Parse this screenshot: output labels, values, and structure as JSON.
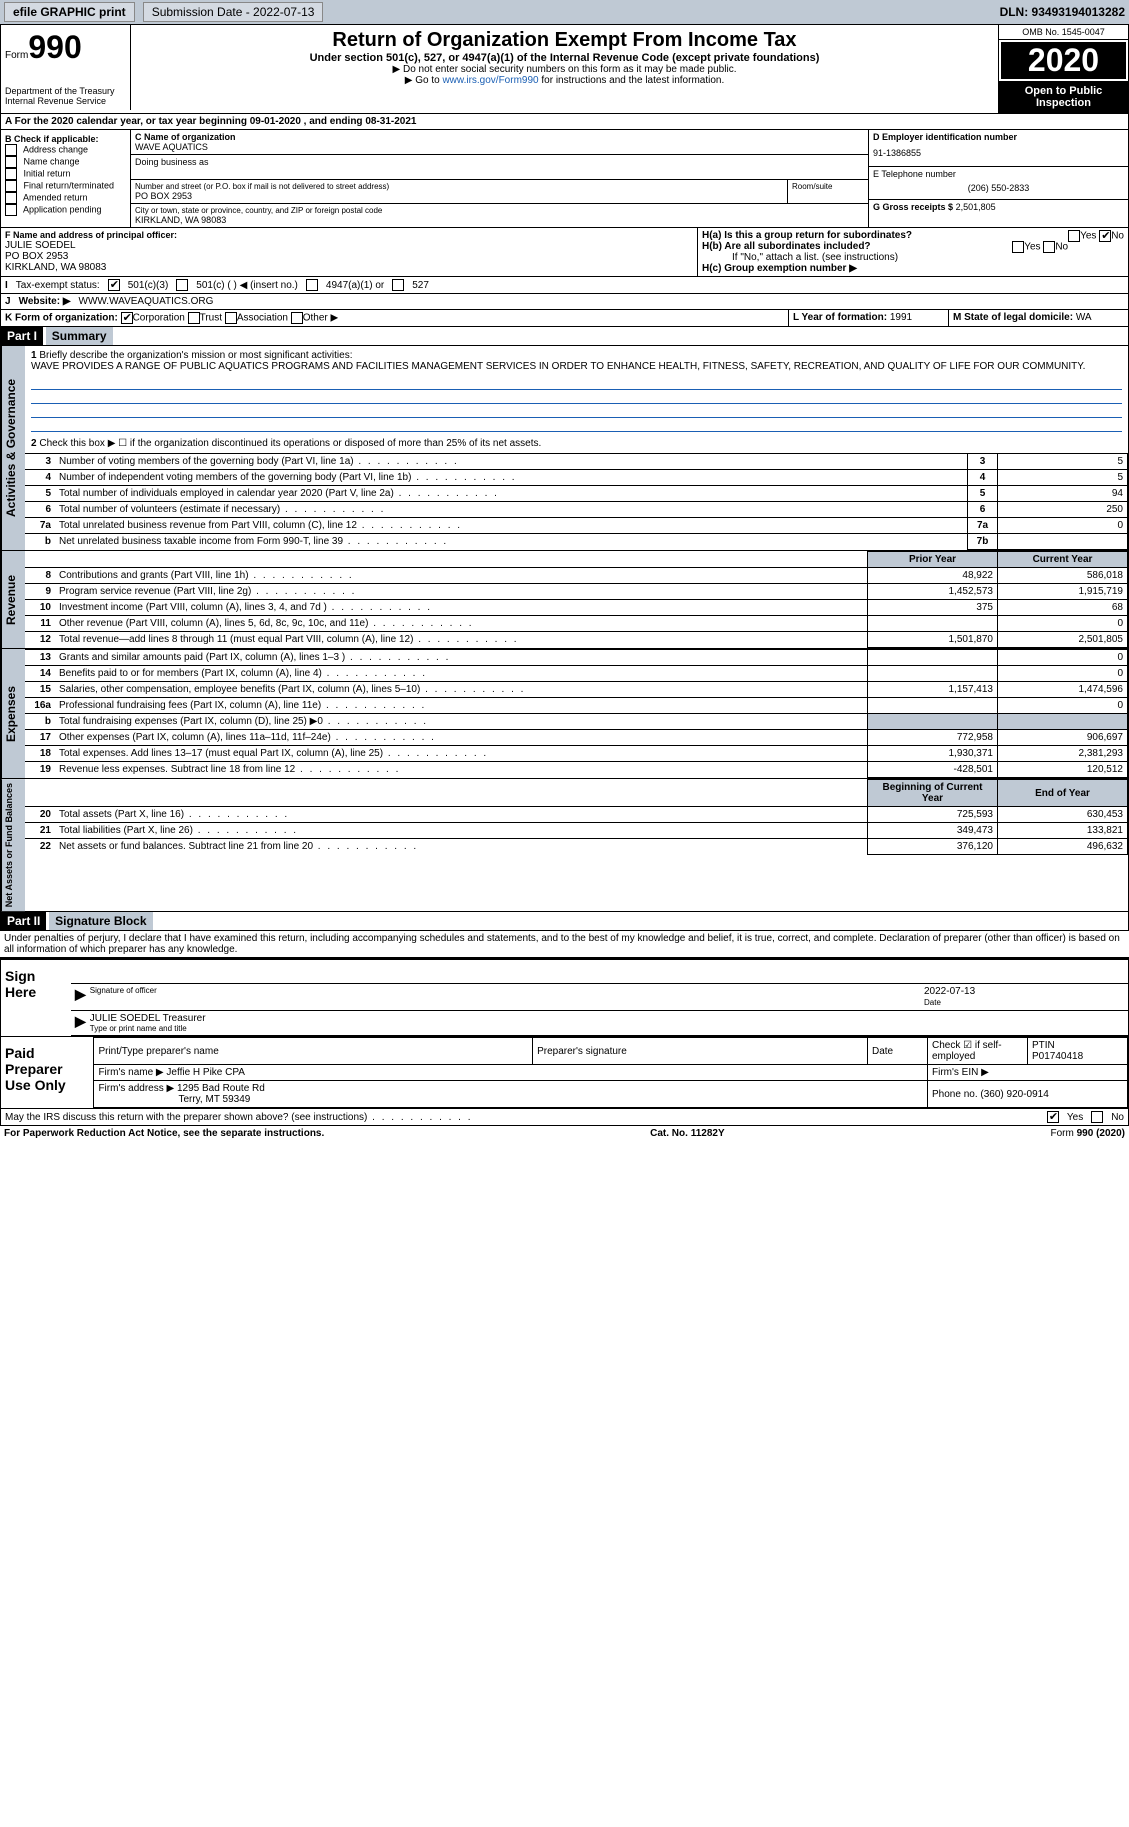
{
  "topbar": {
    "efile": "efile GRAPHIC print",
    "submission": "Submission Date - 2022-07-13",
    "dln": "DLN: 93493194013282"
  },
  "header": {
    "form_label": "Form",
    "form_num": "990",
    "dept": "Department of the Treasury\nInternal Revenue Service",
    "title": "Return of Organization Exempt From Income Tax",
    "subtitle": "Under section 501(c), 527, or 4947(a)(1) of the Internal Revenue Code (except private foundations)",
    "note1": "▶ Do not enter social security numbers on this form as it may be made public.",
    "note2_pre": "▶ Go to ",
    "note2_link": "www.irs.gov/Form990",
    "note2_post": " for instructions and the latest information.",
    "omb": "OMB No. 1545-0047",
    "year": "2020",
    "opi": "Open to Public Inspection"
  },
  "line_a": "A For the 2020 calendar year, or tax year beginning 09-01-2020   , and ending 08-31-2021",
  "col_b": {
    "label": "B Check if applicable:",
    "items": [
      "Address change",
      "Name change",
      "Initial return",
      "Final return/terminated",
      "Amended return",
      "Application pending"
    ]
  },
  "col_c": {
    "name_label": "C Name of organization",
    "name": "WAVE AQUATICS",
    "dba": "Doing business as",
    "addr_label": "Number and street (or P.O. box if mail is not delivered to street address)",
    "room": "Room/suite",
    "addr": "PO BOX 2953",
    "city_label": "City or town, state or province, country, and ZIP or foreign postal code",
    "city": "KIRKLAND, WA  98083"
  },
  "col_d": {
    "ein_label": "D Employer identification number",
    "ein": "91-1386855",
    "phone_label": "E Telephone number",
    "phone": "(206) 550-2833",
    "gross_label": "G Gross receipts $",
    "gross": "2,501,805"
  },
  "row_f": {
    "label": "F  Name and address of principal officer:",
    "name": "JULIE SOEDEL",
    "addr": "PO BOX 2953",
    "city": "KIRKLAND, WA  98083"
  },
  "row_h": {
    "ha": "H(a)  Is this a group return for subordinates?",
    "hb": "H(b)  Are all subordinates included?",
    "hb_note": "If \"No,\" attach a list. (see instructions)",
    "hc": "H(c)  Group exemption number ▶"
  },
  "row_i": "Tax-exempt status:",
  "row_i_opts": [
    "501(c)(3)",
    "501(c) (  ) ◀ (insert no.)",
    "4947(a)(1) or",
    "527"
  ],
  "row_j_label": "Website: ▶",
  "row_j": "WWW.WAVEAQUATICS.ORG",
  "row_k": "K Form of organization:",
  "row_k_opts": [
    "Corporation",
    "Trust",
    "Association",
    "Other ▶"
  ],
  "row_l_label": "L Year of formation:",
  "row_l": "1991",
  "row_m_label": "M State of legal domicile:",
  "row_m": "WA",
  "part1": {
    "hdr": "Part I",
    "title": "Summary",
    "line1": "Briefly describe the organization's mission or most significant activities:",
    "mission": "WAVE PROVIDES A RANGE OF PUBLIC AQUATICS PROGRAMS AND FACILITIES MANAGEMENT SERVICES IN ORDER TO ENHANCE HEALTH, FITNESS, SAFETY, RECREATION, AND QUALITY OF LIFE FOR OUR COMMUNITY.",
    "line2": "Check this box ▶ ☐ if the organization discontinued its operations or disposed of more than 25% of its net assets.",
    "tab_ag": "Activities & Governance",
    "tab_rev": "Revenue",
    "tab_exp": "Expenses",
    "tab_na": "Net Assets or Fund Balances",
    "rows_ag": [
      {
        "n": "3",
        "t": "Number of voting members of the governing body (Part VI, line 1a)",
        "b": "3",
        "v": "5"
      },
      {
        "n": "4",
        "t": "Number of independent voting members of the governing body (Part VI, line 1b)",
        "b": "4",
        "v": "5"
      },
      {
        "n": "5",
        "t": "Total number of individuals employed in calendar year 2020 (Part V, line 2a)",
        "b": "5",
        "v": "94"
      },
      {
        "n": "6",
        "t": "Total number of volunteers (estimate if necessary)",
        "b": "6",
        "v": "250"
      },
      {
        "n": "7a",
        "t": "Total unrelated business revenue from Part VIII, column (C), line 12",
        "b": "7a",
        "v": "0"
      },
      {
        "n": "b",
        "t": "Net unrelated business taxable income from Form 990-T, line 39",
        "b": "7b",
        "v": ""
      }
    ],
    "hdr_prior": "Prior Year",
    "hdr_curr": "Current Year",
    "rows_rev": [
      {
        "n": "8",
        "t": "Contributions and grants (Part VIII, line 1h)",
        "p": "48,922",
        "c": "586,018"
      },
      {
        "n": "9",
        "t": "Program service revenue (Part VIII, line 2g)",
        "p": "1,452,573",
        "c": "1,915,719"
      },
      {
        "n": "10",
        "t": "Investment income (Part VIII, column (A), lines 3, 4, and 7d )",
        "p": "375",
        "c": "68"
      },
      {
        "n": "11",
        "t": "Other revenue (Part VIII, column (A), lines 5, 6d, 8c, 9c, 10c, and 11e)",
        "p": "",
        "c": "0"
      },
      {
        "n": "12",
        "t": "Total revenue—add lines 8 through 11 (must equal Part VIII, column (A), line 12)",
        "p": "1,501,870",
        "c": "2,501,805"
      }
    ],
    "rows_exp": [
      {
        "n": "13",
        "t": "Grants and similar amounts paid (Part IX, column (A), lines 1–3 )",
        "p": "",
        "c": "0"
      },
      {
        "n": "14",
        "t": "Benefits paid to or for members (Part IX, column (A), line 4)",
        "p": "",
        "c": "0"
      },
      {
        "n": "15",
        "t": "Salaries, other compensation, employee benefits (Part IX, column (A), lines 5–10)",
        "p": "1,157,413",
        "c": "1,474,596"
      },
      {
        "n": "16a",
        "t": "Professional fundraising fees (Part IX, column (A), line 11e)",
        "p": "",
        "c": "0"
      },
      {
        "n": "b",
        "t": "Total fundraising expenses (Part IX, column (D), line 25) ▶0",
        "p": "SHADE",
        "c": "SHADE"
      },
      {
        "n": "17",
        "t": "Other expenses (Part IX, column (A), lines 11a–11d, 11f–24e)",
        "p": "772,958",
        "c": "906,697"
      },
      {
        "n": "18",
        "t": "Total expenses. Add lines 13–17 (must equal Part IX, column (A), line 25)",
        "p": "1,930,371",
        "c": "2,381,293"
      },
      {
        "n": "19",
        "t": "Revenue less expenses. Subtract line 18 from line 12",
        "p": "-428,501",
        "c": "120,512"
      }
    ],
    "hdr_begin": "Beginning of Current Year",
    "hdr_end": "End of Year",
    "rows_na": [
      {
        "n": "20",
        "t": "Total assets (Part X, line 16)",
        "p": "725,593",
        "c": "630,453"
      },
      {
        "n": "21",
        "t": "Total liabilities (Part X, line 26)",
        "p": "349,473",
        "c": "133,821"
      },
      {
        "n": "22",
        "t": "Net assets or fund balances. Subtract line 21 from line 20",
        "p": "376,120",
        "c": "496,632"
      }
    ]
  },
  "part2": {
    "hdr": "Part II",
    "title": "Signature Block",
    "decl": "Under penalties of perjury, I declare that I have examined this return, including accompanying schedules and statements, and to the best of my knowledge and belief, it is true, correct, and complete. Declaration of preparer (other than officer) is based on all information of which preparer has any knowledge.",
    "sign_here": "Sign Here",
    "sig_officer": "Signature of officer",
    "sig_date": "2022-07-13",
    "date_lbl": "Date",
    "officer_name": "JULIE SOEDEL Treasurer",
    "type_name": "Type or print name and title",
    "paid_prep": "Paid Preparer Use Only",
    "prep_name_lbl": "Print/Type preparer's name",
    "prep_sig_lbl": "Preparer's signature",
    "prep_date_lbl": "Date",
    "check_se": "Check ☑ if self-employed",
    "ptin_lbl": "PTIN",
    "ptin": "P01740418",
    "firm_name_lbl": "Firm's name    ▶",
    "firm_name": "Jeffie H Pike CPA",
    "firm_ein_lbl": "Firm's EIN ▶",
    "firm_addr_lbl": "Firm's address ▶",
    "firm_addr": "1295 Bad Route Rd",
    "firm_city": "Terry, MT  59349",
    "firm_phone_lbl": "Phone no.",
    "firm_phone": "(360) 920-0914",
    "discuss": "May the IRS discuss this return with the preparer shown above? (see instructions)"
  },
  "footer": {
    "pra": "For Paperwork Reduction Act Notice, see the separate instructions.",
    "cat": "Cat. No. 11282Y",
    "form": "Form 990 (2020)"
  }
}
